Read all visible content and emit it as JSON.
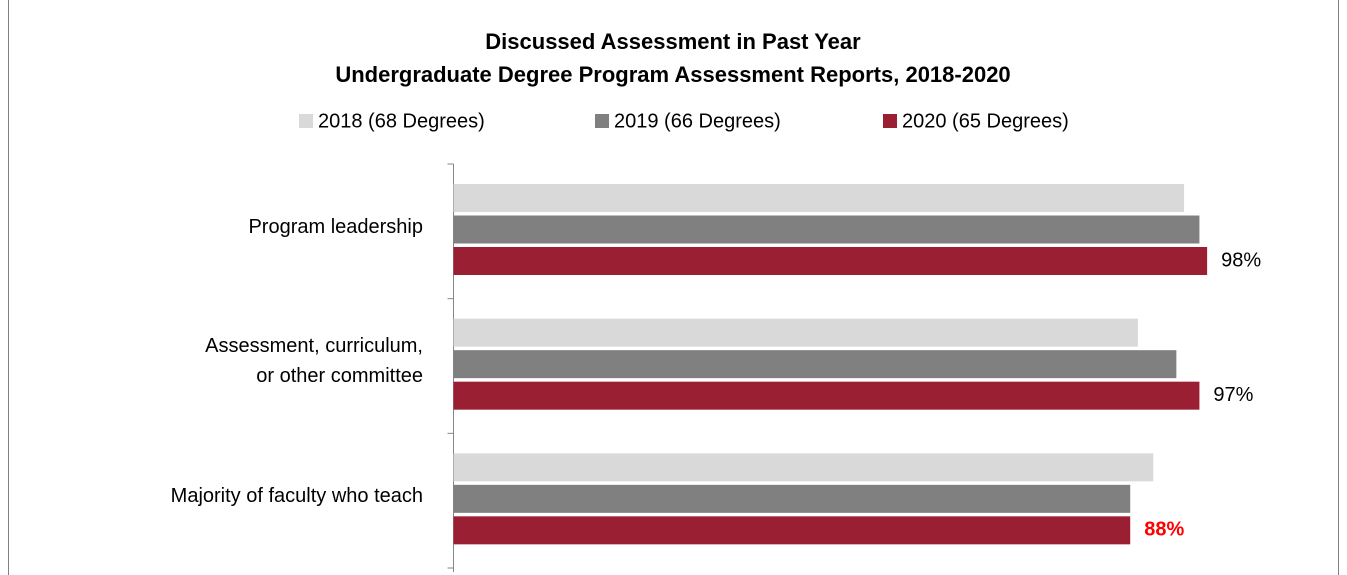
{
  "chart_data": {
    "type": "hbar",
    "title": "Discussed Assessment in Past Year",
    "subtitle": "Undergraduate Degree Program Assessment Reports, 2018-2020",
    "categories": [
      "Program leadership",
      "Assessment, curriculum,\nor other committee",
      "Majority of faculty who teach"
    ],
    "series": [
      {
        "name": "2018 (68 Degrees)",
        "color": "#d9d9d9",
        "values": [
          95,
          89,
          91
        ]
      },
      {
        "name": "2019 (66 Degrees)",
        "color": "#808080",
        "values": [
          97,
          94,
          88
        ]
      },
      {
        "name": "2020 (65 Degrees)",
        "color": "#9b1f33",
        "values": [
          98,
          97,
          88
        ],
        "value_labels": [
          "98%",
          "97%",
          "88%"
        ],
        "value_label_colors": [
          "#000000",
          "#000000",
          "#ff0000"
        ]
      }
    ],
    "xlim": [
      0,
      100
    ],
    "legend": "top"
  }
}
